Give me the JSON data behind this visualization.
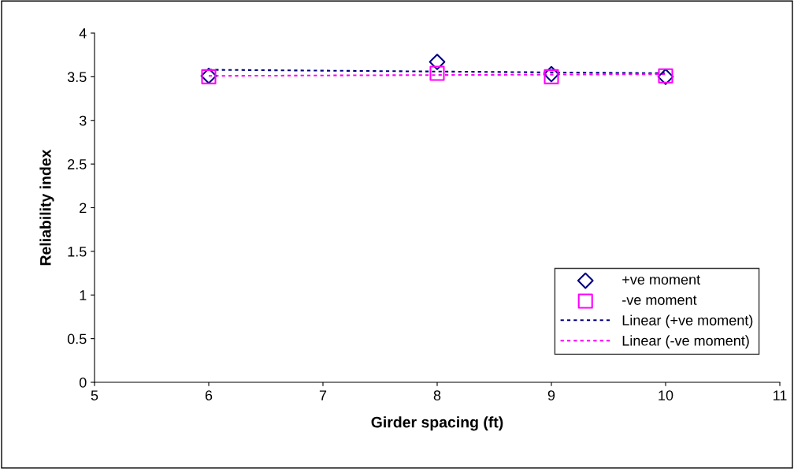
{
  "chart_data": {
    "type": "scatter",
    "xlabel": "Girder spacing (ft)",
    "ylabel": "Reliability index",
    "xlim": [
      5,
      11
    ],
    "xticks": [
      5,
      6,
      7,
      8,
      9,
      10,
      11
    ],
    "ylim": [
      0,
      4
    ],
    "yticks": [
      0,
      0.5,
      1,
      1.5,
      2,
      2.5,
      3,
      3.5,
      4
    ],
    "grid": false,
    "legend": "bottom right",
    "series": [
      {
        "name": "+ve moment",
        "marker": "diamond",
        "color": "#000080",
        "x": [
          6,
          8,
          9,
          10
        ],
        "values": [
          3.51,
          3.67,
          3.53,
          3.5
        ]
      },
      {
        "name": "-ve moment",
        "marker": "square",
        "color": "#ff00ff",
        "x": [
          6,
          8,
          9,
          10
        ],
        "values": [
          3.5,
          3.54,
          3.5,
          3.51
        ]
      },
      {
        "name": "Linear (+ve moment)",
        "type": "line",
        "line_style": "dotted",
        "color": "#000080",
        "x": [
          6,
          10
        ],
        "values": [
          3.58,
          3.54
        ]
      },
      {
        "name": "Linear (-ve moment)",
        "type": "line",
        "line_style": "dotted",
        "color": "#ff00ff",
        "x": [
          6,
          10
        ],
        "values": [
          3.51,
          3.53
        ]
      }
    ]
  }
}
